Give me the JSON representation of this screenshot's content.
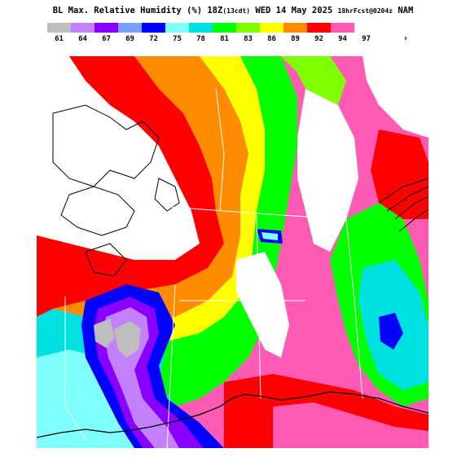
{
  "title": {
    "main": "BL Max. Relative Humidity (%) 18Z",
    "valid": "(13cdt)",
    "date": "WED 14 May 2025",
    "forecast": "18hrFcst@0204z",
    "model": "NAM"
  },
  "legend": {
    "units": "%",
    "items": [
      {
        "value": "61",
        "color": "#bebebe"
      },
      {
        "value": "64",
        "color": "#c380ff"
      },
      {
        "value": "67",
        "color": "#8a00ff"
      },
      {
        "value": "69",
        "color": "#7aa0ff"
      },
      {
        "value": "72",
        "color": "#0000ff"
      },
      {
        "value": "75",
        "color": "#80ffff"
      },
      {
        "value": "78",
        "color": "#00e0e0"
      },
      {
        "value": "81",
        "color": "#00ff00"
      },
      {
        "value": "83",
        "color": "#80ff00"
      },
      {
        "value": "86",
        "color": "#ffff00"
      },
      {
        "value": "89",
        "color": "#ff8c00"
      },
      {
        "value": "92",
        "color": "#ff0000"
      },
      {
        "value": "94",
        "color": "#ff5ab4"
      },
      {
        "value": "97",
        "color": "#ffffff"
      }
    ],
    "more": "›"
  }
}
